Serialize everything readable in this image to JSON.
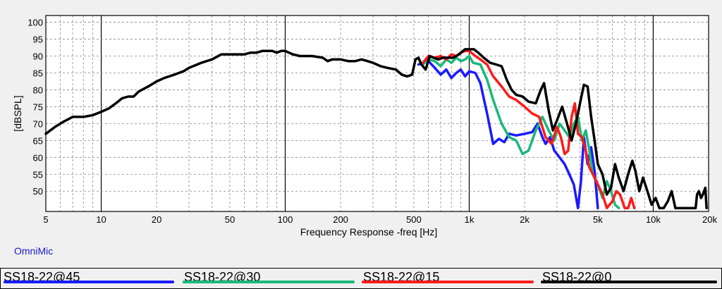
{
  "app_label": "OmniMic",
  "chart_data": {
    "type": "line",
    "title": "",
    "xlabel": "Frequency Response -freq [Hz]",
    "ylabel": "[dBSPL]",
    "x_scale": "log",
    "xlim": [
      5,
      20000
    ],
    "ylim": [
      44,
      102
    ],
    "grid": true,
    "x_ticks": [
      {
        "value": 5,
        "label": "5"
      },
      {
        "value": 10,
        "label": "10"
      },
      {
        "value": 20,
        "label": "20"
      },
      {
        "value": 50,
        "label": "50"
      },
      {
        "value": 100,
        "label": "100"
      },
      {
        "value": 200,
        "label": "200"
      },
      {
        "value": 500,
        "label": "500"
      },
      {
        "value": 1000,
        "label": "1k"
      },
      {
        "value": 2000,
        "label": "2k"
      },
      {
        "value": 5000,
        "label": "5k"
      },
      {
        "value": 10000,
        "label": "10k"
      },
      {
        "value": 20000,
        "label": "20k"
      }
    ],
    "y_ticks": [
      {
        "value": 50,
        "label": "50"
      },
      {
        "value": 55,
        "label": "55"
      },
      {
        "value": 60,
        "label": "60"
      },
      {
        "value": 65,
        "label": "65"
      },
      {
        "value": 70,
        "label": "70"
      },
      {
        "value": 75,
        "label": "75"
      },
      {
        "value": 80,
        "label": "80"
      },
      {
        "value": 85,
        "label": "85"
      },
      {
        "value": 90,
        "label": "90"
      },
      {
        "value": 95,
        "label": "95"
      },
      {
        "value": 100,
        "label": "100"
      }
    ],
    "series": [
      {
        "name": "SS18-22@45",
        "color": "#1a1aff",
        "points": [
          [
            530,
            87.5
          ],
          [
            600,
            88.5
          ],
          [
            650,
            86.5
          ],
          [
            700,
            84.5
          ],
          [
            750,
            86
          ],
          [
            800,
            83.5
          ],
          [
            850,
            85
          ],
          [
            900,
            86
          ],
          [
            950,
            84
          ],
          [
            1000,
            85.5
          ],
          [
            1080,
            85
          ],
          [
            1150,
            82
          ],
          [
            1250,
            73
          ],
          [
            1350,
            64
          ],
          [
            1450,
            65.5
          ],
          [
            1550,
            64.5
          ],
          [
            1650,
            67
          ],
          [
            1800,
            66.5
          ],
          [
            2000,
            67
          ],
          [
            2200,
            67.5
          ],
          [
            2350,
            70
          ],
          [
            2500,
            66
          ],
          [
            2600,
            64
          ],
          [
            2750,
            66
          ],
          [
            2900,
            62
          ],
          [
            3100,
            60
          ],
          [
            3300,
            58
          ],
          [
            3500,
            55
          ],
          [
            3700,
            52
          ],
          [
            3900,
            45
          ],
          [
            4050,
            53
          ],
          [
            4200,
            66
          ],
          [
            4400,
            58
          ],
          [
            4600,
            63
          ],
          [
            4800,
            56
          ],
          [
            5000,
            45
          ]
        ]
      },
      {
        "name": "SS18-22@30",
        "color": "#1ab87a",
        "points": [
          [
            560,
            87.5
          ],
          [
            600,
            89
          ],
          [
            650,
            88.5
          ],
          [
            700,
            87
          ],
          [
            750,
            89
          ],
          [
            800,
            88
          ],
          [
            850,
            89.5
          ],
          [
            900,
            88.5
          ],
          [
            950,
            89
          ],
          [
            1000,
            90
          ],
          [
            1050,
            88
          ],
          [
            1150,
            87.5
          ],
          [
            1250,
            83
          ],
          [
            1350,
            77
          ],
          [
            1500,
            70
          ],
          [
            1650,
            66
          ],
          [
            1800,
            65
          ],
          [
            1950,
            61
          ],
          [
            2100,
            62
          ],
          [
            2300,
            68
          ],
          [
            2500,
            72
          ],
          [
            2700,
            68
          ],
          [
            2900,
            65
          ],
          [
            3100,
            70
          ],
          [
            3300,
            68
          ],
          [
            3500,
            66
          ],
          [
            3700,
            70
          ],
          [
            3900,
            72
          ],
          [
            4100,
            65
          ],
          [
            4300,
            68
          ],
          [
            4500,
            62
          ],
          [
            4700,
            55
          ],
          [
            5000,
            52
          ],
          [
            5300,
            48
          ],
          [
            5600,
            53
          ],
          [
            5900,
            50
          ],
          [
            6200,
            46
          ],
          [
            6500,
            45
          ]
        ]
      },
      {
        "name": "SS18-22@15",
        "color": "#ff1a1a",
        "points": [
          [
            560,
            88
          ],
          [
            600,
            90
          ],
          [
            650,
            89.5
          ],
          [
            700,
            90
          ],
          [
            750,
            89
          ],
          [
            800,
            90.5
          ],
          [
            850,
            90
          ],
          [
            900,
            91
          ],
          [
            950,
            91.5
          ],
          [
            1000,
            91.5
          ],
          [
            1080,
            90
          ],
          [
            1150,
            89
          ],
          [
            1250,
            87.5
          ],
          [
            1350,
            84
          ],
          [
            1500,
            81
          ],
          [
            1650,
            78
          ],
          [
            1800,
            77
          ],
          [
            2000,
            75
          ],
          [
            2200,
            73
          ],
          [
            2400,
            72
          ],
          [
            2600,
            66
          ],
          [
            2800,
            64
          ],
          [
            3000,
            69
          ],
          [
            3150,
            66
          ],
          [
            3300,
            61
          ],
          [
            3450,
            62
          ],
          [
            3600,
            72
          ],
          [
            3750,
            76
          ],
          [
            3900,
            67
          ],
          [
            4100,
            66
          ],
          [
            4300,
            62
          ],
          [
            4500,
            57
          ],
          [
            4700,
            55
          ],
          [
            5000,
            52
          ],
          [
            5300,
            49
          ],
          [
            5600,
            45
          ],
          [
            6000,
            47
          ],
          [
            6300,
            50
          ],
          [
            6600,
            49
          ],
          [
            7000,
            45
          ],
          [
            7300,
            45
          ],
          [
            7600,
            48
          ],
          [
            7900,
            45
          ]
        ]
      },
      {
        "name": "SS18-22@0",
        "color": "#000000",
        "points": [
          [
            5,
            67
          ],
          [
            5.6,
            69
          ],
          [
            6.2,
            70.5
          ],
          [
            7,
            72
          ],
          [
            8,
            72
          ],
          [
            9,
            72.5
          ],
          [
            10,
            73.5
          ],
          [
            11,
            74.5
          ],
          [
            12,
            76
          ],
          [
            13,
            77.5
          ],
          [
            14,
            78
          ],
          [
            15,
            78
          ],
          [
            16,
            79.5
          ],
          [
            18,
            81
          ],
          [
            20,
            82.5
          ],
          [
            22,
            83.5
          ],
          [
            25,
            84.5
          ],
          [
            28,
            85.5
          ],
          [
            30,
            86.5
          ],
          [
            35,
            88
          ],
          [
            40,
            89
          ],
          [
            45,
            90.5
          ],
          [
            50,
            90.5
          ],
          [
            55,
            90.5
          ],
          [
            60,
            90.5
          ],
          [
            65,
            91
          ],
          [
            70,
            91
          ],
          [
            75,
            91.5
          ],
          [
            85,
            91.5
          ],
          [
            90,
            91
          ],
          [
            95,
            91.5
          ],
          [
            100,
            91.5
          ],
          [
            110,
            90.5
          ],
          [
            120,
            90
          ],
          [
            140,
            90
          ],
          [
            160,
            89.5
          ],
          [
            170,
            88.5
          ],
          [
            180,
            89
          ],
          [
            200,
            89
          ],
          [
            220,
            88.5
          ],
          [
            240,
            88.5
          ],
          [
            260,
            89
          ],
          [
            280,
            88.5
          ],
          [
            300,
            88
          ],
          [
            330,
            87
          ],
          [
            360,
            86.5
          ],
          [
            400,
            86
          ],
          [
            430,
            84.5
          ],
          [
            460,
            84
          ],
          [
            490,
            84.5
          ],
          [
            510,
            89
          ],
          [
            530,
            89.5
          ],
          [
            550,
            87.5
          ],
          [
            580,
            86
          ],
          [
            610,
            90
          ],
          [
            640,
            89.5
          ],
          [
            680,
            89
          ],
          [
            720,
            89.5
          ],
          [
            770,
            89.5
          ],
          [
            820,
            89.5
          ],
          [
            880,
            90.5
          ],
          [
            950,
            92
          ],
          [
            1000,
            92
          ],
          [
            1060,
            92
          ],
          [
            1120,
            91
          ],
          [
            1200,
            89.5
          ],
          [
            1300,
            88
          ],
          [
            1400,
            87.5
          ],
          [
            1500,
            87
          ],
          [
            1600,
            83
          ],
          [
            1700,
            80
          ],
          [
            1800,
            78.5
          ],
          [
            1950,
            78
          ],
          [
            2100,
            76.5
          ],
          [
            2300,
            76
          ],
          [
            2450,
            80
          ],
          [
            2550,
            82
          ],
          [
            2700,
            74
          ],
          [
            2850,
            68
          ],
          [
            3000,
            71
          ],
          [
            3200,
            75
          ],
          [
            3400,
            70
          ],
          [
            3600,
            65
          ],
          [
            3800,
            70
          ],
          [
            4000,
            76
          ],
          [
            4200,
            81.5
          ],
          [
            4400,
            81
          ],
          [
            4600,
            72
          ],
          [
            4800,
            65
          ],
          [
            5000,
            58
          ],
          [
            5300,
            55
          ],
          [
            5600,
            49
          ],
          [
            5900,
            51
          ],
          [
            6200,
            58
          ],
          [
            6500,
            54
          ],
          [
            6900,
            50
          ],
          [
            7300,
            55
          ],
          [
            7700,
            59
          ],
          [
            8000,
            56
          ],
          [
            8400,
            50
          ],
          [
            8800,
            54
          ],
          [
            9300,
            50
          ],
          [
            9800,
            46
          ],
          [
            10300,
            48
          ],
          [
            10800,
            45
          ],
          [
            11400,
            45
          ],
          [
            12000,
            47
          ],
          [
            12600,
            50
          ],
          [
            13200,
            45
          ],
          [
            17000,
            45
          ],
          [
            17300,
            49
          ],
          [
            17700,
            50
          ],
          [
            18200,
            48
          ],
          [
            18600,
            49
          ],
          [
            19200,
            51
          ],
          [
            19500,
            45
          ]
        ]
      }
    ]
  }
}
